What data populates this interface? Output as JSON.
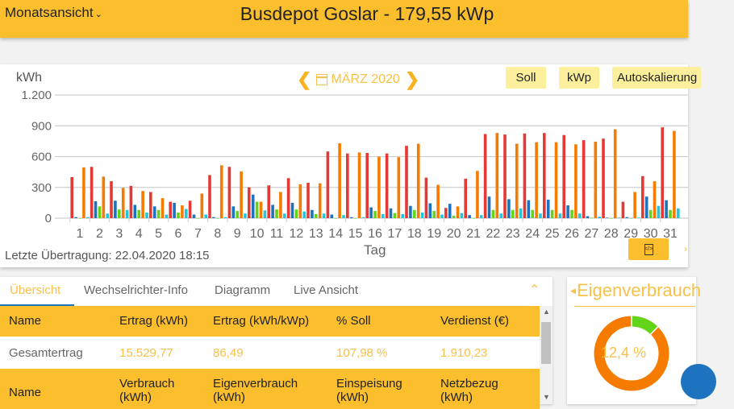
{
  "header": {
    "view_select": "Monatsansicht",
    "title": "Busdepot Goslar - 179,55 kWp"
  },
  "chart_toolbar": {
    "month_label": "MÄRZ 2020",
    "prev_icon": "chevron-left-icon",
    "next_icon": "chevron-right-icon",
    "calendar_icon": "calendar-icon",
    "chip_soll": "Soll",
    "chip_kwp": "kWp",
    "chip_autoscale": "Autoskalierung"
  },
  "chart_footer": {
    "last_transfer": "Letzte Übertragung: 22.04.2020 18:15",
    "export_icon": "file-code-icon"
  },
  "colors": {
    "accent": "#fbbf2e",
    "accent_text": "#f8c14a",
    "series_red": "#e53935",
    "series_blue": "#1e73be",
    "series_green": "#62d41a",
    "series_orange": "#f57c00",
    "series_cyan": "#26c6da"
  },
  "chart_data": {
    "type": "bar",
    "title": "MÄRZ 2020",
    "xlabel": "Tag",
    "ylabel": "kWh",
    "ylim": [
      0,
      1200
    ],
    "yticks": [
      "0",
      "300",
      "600",
      "900",
      "1.200"
    ],
    "grid": true,
    "categories": [
      "1",
      "2",
      "3",
      "4",
      "5",
      "6",
      "7",
      "8",
      "9",
      "10",
      "11",
      "12",
      "13",
      "14",
      "15",
      "16",
      "17",
      "18",
      "19",
      "20",
      "21",
      "22",
      "23",
      "24",
      "25",
      "26",
      "27",
      "28",
      "29",
      "30",
      "31"
    ],
    "series": [
      {
        "name": "Ertrag",
        "color": "#e53935",
        "values": [
          400,
          500,
          360,
          315,
          255,
          160,
          170,
          420,
          500,
          300,
          320,
          390,
          345,
          650,
          630,
          635,
          630,
          705,
          395,
          100,
          385,
          820,
          815,
          825,
          830,
          810,
          760,
          775,
          160,
          410,
          885
        ]
      },
      {
        "name": "Verbrauch",
        "color": "#1e73be",
        "values": [
          10,
          165,
          170,
          130,
          115,
          150,
          35,
          10,
          115,
          230,
          130,
          150,
          80,
          35,
          10,
          105,
          95,
          120,
          145,
          140,
          30,
          210,
          185,
          175,
          180,
          125,
          20,
          5,
          10,
          210,
          175
        ]
      },
      {
        "name": "Eigenverbrauch",
        "color": "#62d41a",
        "values": [
          0,
          115,
          85,
          80,
          80,
          55,
          0,
          0,
          70,
          160,
          85,
          85,
          40,
          0,
          0,
          70,
          50,
          80,
          70,
          25,
          0,
          80,
          80,
          80,
          80,
          80,
          5,
          0,
          0,
          80,
          80
        ]
      },
      {
        "name": "Soll",
        "color": "#f57c00",
        "values": [
          495,
          405,
          295,
          265,
          195,
          125,
          240,
          515,
          455,
          160,
          255,
          330,
          340,
          730,
          640,
          600,
          595,
          725,
          325,
          115,
          460,
          830,
          725,
          740,
          740,
          720,
          745,
          865,
          255,
          360,
          850
        ]
      },
      {
        "name": "Einspeisung",
        "color": "#26c6da",
        "values": [
          10,
          45,
          80,
          55,
          35,
          90,
          35,
          10,
          45,
          75,
          45,
          65,
          45,
          30,
          10,
          40,
          40,
          55,
          35,
          50,
          30,
          45,
          95,
          45,
          45,
          45,
          15,
          5,
          5,
          120,
          95
        ]
      }
    ]
  },
  "tabs": [
    {
      "label": "Übersicht",
      "active": true
    },
    {
      "label": "Wechselrichter-Info",
      "active": false
    },
    {
      "label": "Diagramm",
      "active": false
    },
    {
      "label": "Live Ansicht",
      "active": false
    }
  ],
  "table1": {
    "headers": [
      "Name",
      "Ertrag (kWh)",
      "Ertrag (kWh/kWp)",
      "% Soll",
      "Verdienst (€)"
    ],
    "rows": [
      [
        "Gesamtertrag",
        "15.529,77",
        "86,49",
        "107,98 %",
        "1.910,23"
      ]
    ]
  },
  "table2": {
    "headers": [
      "Name",
      "Verbrauch (kWh)",
      "Eigenverbrauch (kWh)",
      "Einspeisung (kWh)",
      "Netzbezug (kWh)"
    ]
  },
  "donut": {
    "title": "Eigenverbrauch",
    "value": "12,4 %",
    "percent": 12.4,
    "color_part": "#62d41a",
    "color_rest": "#f57c00"
  }
}
